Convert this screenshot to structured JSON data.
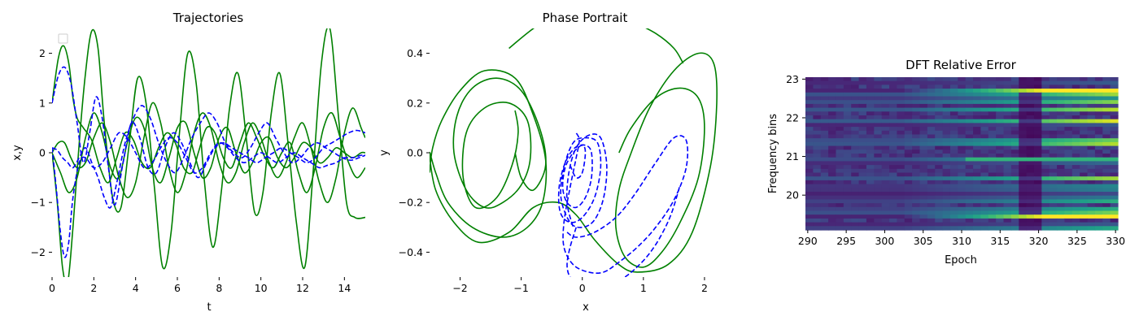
{
  "chart_data": [
    {
      "type": "line",
      "title": "Trajectories",
      "xlabel": "t",
      "ylabel": "x,y",
      "xlim": [
        0,
        15
      ],
      "ylim": [
        -2.5,
        2.5
      ],
      "xticks": [
        0,
        2,
        4,
        6,
        8,
        10,
        12,
        14
      ],
      "yticks": [
        -2,
        -1,
        0,
        1,
        2
      ],
      "legend": "top-left (empty)",
      "grid": false,
      "series": [
        {
          "style": "solid",
          "color": "#008000",
          "x": [
            0,
            0.3,
            0.55,
            0.8,
            1.0,
            1.2,
            1.5,
            1.9,
            2.3,
            2.7,
            3.1,
            3.5,
            3.9,
            4.3,
            4.7,
            5.1,
            5.5,
            5.9,
            6.3,
            6.7,
            7.0,
            7.4,
            7.8,
            8.2,
            8.6,
            9.0,
            9.4,
            9.8,
            10.2,
            10.6,
            11.0,
            11.4,
            11.8,
            12.2,
            12.6,
            13.0,
            13.4,
            13.8,
            14.2,
            14.6,
            15.0
          ],
          "y": [
            1.0,
            1.9,
            2.15,
            1.8,
            1.1,
            0.7,
            0.5,
            0.25,
            -0.3,
            -0.6,
            -0.1,
            0.4,
            0.25,
            -0.2,
            -0.3,
            0.1,
            0.4,
            0.2,
            -0.3,
            -0.4,
            0.0,
            0.5,
            0.4,
            -0.1,
            -0.3,
            0.2,
            0.6,
            0.3,
            -0.1,
            -0.3,
            0.0,
            0.2,
            -0.4,
            -0.8,
            -0.3,
            0.5,
            0.8,
            0.3,
            -0.2,
            -0.5,
            -0.3
          ]
        },
        {
          "style": "solid",
          "color": "#008000",
          "x": [
            0,
            0.3,
            0.6,
            0.9,
            1.2,
            1.6,
            2.0,
            2.4,
            2.8,
            3.2,
            3.6,
            4.0,
            4.4,
            4.8,
            5.2,
            5.6,
            6.0,
            6.4,
            6.8,
            7.2,
            7.6,
            8.0,
            8.4,
            8.8,
            9.2,
            9.6,
            10.0,
            10.4,
            10.8,
            11.2,
            11.6,
            12.0,
            12.4,
            12.8,
            13.2,
            13.6,
            14.0,
            14.4,
            14.8,
            15.0
          ],
          "y": [
            0.0,
            0.2,
            0.2,
            -0.1,
            -0.3,
            -0.2,
            0.3,
            0.6,
            0.2,
            -0.5,
            -0.9,
            -0.6,
            0.3,
            1.0,
            0.6,
            -0.3,
            -0.8,
            -0.4,
            0.4,
            0.8,
            0.5,
            -0.2,
            -0.6,
            -0.4,
            0.2,
            0.6,
            0.3,
            -0.2,
            -0.5,
            -0.2,
            0.3,
            0.6,
            0.1,
            -0.6,
            -1.0,
            -0.5,
            0.4,
            0.9,
            0.5,
            0.3
          ]
        },
        {
          "style": "solid",
          "color": "#008000",
          "x": [
            0,
            0.25,
            0.5,
            0.75,
            1.0,
            1.3,
            1.6,
            1.9,
            2.2,
            2.5,
            2.9,
            3.3,
            3.7,
            4.1,
            4.5,
            4.9,
            5.3,
            5.7,
            6.1,
            6.5,
            6.9,
            7.3,
            7.7,
            8.1,
            8.5,
            8.9,
            9.3,
            9.7,
            10.1,
            10.5,
            10.9,
            11.3,
            11.7,
            12.1,
            12.5,
            12.9,
            13.3,
            13.7,
            14.1,
            14.5,
            15.0
          ],
          "y": [
            0.0,
            -1.0,
            -2.3,
            -2.6,
            -1.5,
            0.2,
            1.6,
            2.45,
            2.1,
            0.6,
            -0.9,
            -1.1,
            0.2,
            1.5,
            1.0,
            -0.7,
            -2.3,
            -1.6,
            0.4,
            2.0,
            1.4,
            -0.6,
            -1.9,
            -0.8,
            0.9,
            1.6,
            0.3,
            -1.2,
            -0.8,
            0.8,
            1.6,
            0.2,
            -1.4,
            -2.3,
            -0.4,
            1.8,
            2.5,
            0.8,
            -1.0,
            -1.3,
            -1.3
          ]
        },
        {
          "style": "solid",
          "color": "#008000",
          "x": [
            0,
            0.4,
            0.8,
            1.2,
            1.6,
            2.0,
            2.4,
            2.8,
            3.2,
            3.6,
            4.0,
            4.4,
            4.8,
            5.2,
            5.6,
            6.0,
            6.4,
            6.8,
            7.2,
            7.6,
            8.0,
            8.4,
            8.8,
            9.2,
            9.6,
            10.0,
            10.4,
            10.8,
            11.2,
            11.6,
            12.0,
            12.4,
            12.8,
            13.2,
            13.6,
            14.0,
            14.4,
            14.8,
            15.0
          ],
          "y": [
            0.0,
            -0.4,
            -0.8,
            -0.5,
            0.3,
            0.8,
            0.4,
            -0.3,
            -0.5,
            0.2,
            0.7,
            0.5,
            -0.3,
            -0.6,
            -0.1,
            0.5,
            0.6,
            0.0,
            -0.5,
            -0.3,
            0.3,
            0.5,
            0.0,
            -0.4,
            -0.2,
            0.2,
            0.3,
            -0.1,
            -0.3,
            -0.1,
            0.2,
            0.1,
            -0.2,
            -0.1,
            0.1,
            0.0,
            -0.1,
            0.0,
            0.0
          ]
        },
        {
          "style": "dashed",
          "color": "#0000ff",
          "x": [
            0,
            0.3,
            0.6,
            0.9,
            1.2,
            1.5,
            1.8,
            2.1,
            2.4,
            2.7,
            3.0,
            3.4,
            3.8,
            4.2,
            4.6,
            5.0,
            5.4,
            5.8,
            6.2,
            6.6,
            7.0,
            7.4,
            7.8,
            8.2,
            8.6,
            9.0,
            9.4,
            9.8,
            10.2,
            10.6,
            11.0,
            11.4,
            11.8,
            12.2,
            12.6,
            13.0,
            13.4,
            13.8,
            14.2,
            14.6,
            15.0
          ],
          "y": [
            1.0,
            1.55,
            1.72,
            1.4,
            0.6,
            -0.2,
            0.4,
            1.12,
            0.7,
            -0.3,
            -1.05,
            -0.2,
            0.6,
            0.3,
            -0.3,
            -0.4,
            0.1,
            0.4,
            0.2,
            -0.2,
            -0.5,
            -0.2,
            0.1,
            0.2,
            0.1,
            0.0,
            -0.1,
            -0.2,
            -0.1,
            0.0,
            0.1,
            0.0,
            -0.1,
            -0.2,
            -0.1,
            0.1,
            0.2,
            0.3,
            0.4,
            0.45,
            0.4
          ]
        },
        {
          "style": "dashed",
          "color": "#0000ff",
          "x": [
            0,
            0.25,
            0.5,
            0.75,
            1.0,
            1.3,
            1.6,
            1.9,
            2.2,
            2.5,
            2.8,
            3.1,
            3.5,
            3.9,
            4.3,
            4.7,
            5.1,
            5.5,
            5.9,
            6.3,
            6.7,
            7.1,
            7.5,
            7.9,
            8.3,
            8.7,
            9.1,
            9.5,
            9.9,
            10.3,
            10.7,
            11.1,
            11.5,
            11.9,
            12.3,
            12.7,
            13.1,
            13.5,
            13.9,
            14.3,
            14.7,
            15.0
          ],
          "y": [
            0.1,
            0.05,
            -0.1,
            -0.2,
            -0.3,
            -0.1,
            0.1,
            -0.2,
            -0.5,
            -0.9,
            -1.1,
            -0.6,
            0.2,
            0.7,
            0.95,
            0.7,
            0.2,
            -0.2,
            -0.4,
            -0.1,
            0.3,
            0.6,
            0.8,
            0.6,
            0.2,
            0.0,
            -0.1,
            0.1,
            0.4,
            0.6,
            0.3,
            0.0,
            -0.2,
            -0.1,
            0.1,
            0.2,
            0.1,
            0.0,
            -0.1,
            -0.15,
            -0.1,
            -0.05
          ]
        },
        {
          "style": "dashed",
          "color": "#0000ff",
          "x": [
            0,
            0.2,
            0.4,
            0.6,
            0.8,
            1.0,
            1.3,
            1.6,
            2.0,
            2.4,
            2.8,
            3.2,
            3.6,
            4.0,
            4.4,
            4.8,
            5.2,
            5.6,
            6.0,
            6.4,
            6.8,
            7.2,
            7.6,
            8.0,
            8.4,
            8.8,
            9.2,
            9.6,
            10.0,
            10.4,
            10.8,
            11.2,
            11.6,
            12.0,
            12.4,
            12.8,
            13.2,
            13.6,
            14.0,
            14.4,
            14.8,
            15.0
          ],
          "y": [
            0.1,
            -0.7,
            -1.6,
            -2.1,
            -1.8,
            -0.9,
            -0.2,
            -0.1,
            -0.3,
            -0.2,
            0.1,
            0.4,
            0.3,
            0.0,
            -0.3,
            -0.2,
            0.1,
            0.3,
            0.2,
            -0.1,
            -0.4,
            -0.3,
            0.0,
            0.2,
            0.1,
            -0.1,
            -0.2,
            -0.1,
            0.0,
            -0.1,
            -0.2,
            -0.1,
            0.0,
            -0.1,
            -0.2,
            -0.3,
            -0.25,
            -0.2,
            -0.1,
            -0.1,
            -0.05,
            -0.05
          ]
        }
      ]
    },
    {
      "type": "line",
      "title": "Phase Portrait",
      "xlabel": "x",
      "ylabel": "y",
      "xlim": [
        -2.5,
        2.6
      ],
      "ylim": [
        -0.5,
        0.5
      ],
      "xticks": [
        -2,
        -1,
        0,
        1,
        2
      ],
      "yticks": [
        -0.4,
        -0.2,
        0.0,
        0.2,
        0.4
      ],
      "grid": false,
      "series": [
        {
          "style": "solid",
          "color": "#008000",
          "role": "loop-left-outer",
          "x": [
            -2.5,
            -2.45,
            -2.3,
            -2.0,
            -1.6,
            -1.1,
            -0.8,
            -0.6,
            -0.65,
            -0.9,
            -1.3,
            -1.8,
            -2.2,
            -2.4,
            -2.5,
            -2.4,
            -2.1,
            -1.7,
            -1.2,
            -0.8,
            -0.4,
            -0.1,
            0.2,
            0.6,
            0.9,
            1.4,
            1.8,
            2.1,
            2.2,
            2.15,
            1.9,
            1.5,
            1.1,
            0.8,
            0.6,
            0.55,
            0.7,
            1.0,
            1.3,
            1.6,
            1.9,
            2.0,
            1.9,
            1.6,
            1.2,
            0.8,
            0.6
          ],
          "y": [
            -0.08,
            0.02,
            0.13,
            0.25,
            0.33,
            0.3,
            0.15,
            -0.03,
            -0.2,
            -0.3,
            -0.34,
            -0.3,
            -0.2,
            -0.08,
            0.0,
            -0.15,
            -0.28,
            -0.36,
            -0.32,
            -0.22,
            -0.2,
            -0.25,
            -0.35,
            -0.45,
            -0.48,
            -0.45,
            -0.32,
            -0.05,
            0.2,
            0.36,
            0.4,
            0.33,
            0.18,
            0.0,
            -0.15,
            -0.3,
            -0.42,
            -0.46,
            -0.4,
            -0.28,
            -0.1,
            0.1,
            0.22,
            0.26,
            0.22,
            0.1,
            0.0
          ]
        },
        {
          "style": "solid",
          "color": "#008000",
          "role": "loop-left-inner",
          "x": [
            -1.1,
            -1.05,
            -1.15,
            -1.4,
            -1.75,
            -1.95,
            -1.9,
            -1.6,
            -1.2,
            -0.9,
            -0.85,
            -1.0,
            -1.3,
            -1.6,
            -1.9,
            -2.1,
            -2.05,
            -1.8,
            -1.4,
            -1.0,
            -0.7,
            -0.6,
            -0.8,
            -1.0,
            -1.1
          ],
          "y": [
            0.17,
            0.08,
            -0.05,
            -0.18,
            -0.22,
            -0.1,
            0.08,
            0.18,
            0.2,
            0.13,
            -0.02,
            -0.13,
            -0.2,
            -0.22,
            -0.15,
            0.0,
            0.15,
            0.26,
            0.3,
            0.25,
            0.1,
            -0.05,
            -0.15,
            -0.1,
            0.0
          ]
        },
        {
          "style": "solid",
          "color": "#008000",
          "role": "upper-arc",
          "x": [
            -1.2,
            -0.8,
            -0.4,
            0.0,
            0.4,
            0.8,
            1.2,
            1.5,
            1.65
          ],
          "y": [
            0.42,
            0.5,
            0.56,
            0.58,
            0.57,
            0.53,
            0.48,
            0.42,
            0.36
          ]
        },
        {
          "style": "dashed",
          "color": "#0000ff",
          "role": "spiral-center",
          "x": [
            -0.2,
            -0.1,
            0.0,
            0.05,
            0.0,
            -0.15,
            -0.28,
            -0.32,
            -0.25,
            -0.1,
            0.05,
            0.15,
            0.15,
            0.05,
            -0.12,
            -0.28,
            -0.38,
            -0.36,
            -0.2,
            0.0,
            0.2,
            0.3,
            0.25,
            0.05,
            -0.15,
            -0.3,
            -0.35,
            -0.2,
            0.0,
            0.2,
            0.35,
            0.4,
            0.3,
            0.1,
            -0.1,
            -0.22,
            -0.25,
            -0.15
          ],
          "y": [
            -0.05,
            -0.1,
            -0.08,
            0.0,
            0.03,
            0.0,
            -0.06,
            -0.14,
            -0.2,
            -0.22,
            -0.18,
            -0.1,
            0.0,
            0.03,
            0.02,
            -0.04,
            -0.14,
            -0.24,
            -0.28,
            -0.26,
            -0.18,
            -0.06,
            0.04,
            0.06,
            0.04,
            -0.06,
            -0.18,
            -0.28,
            -0.3,
            -0.27,
            -0.18,
            -0.05,
            0.06,
            0.07,
            0.02,
            -0.08,
            -0.2,
            -0.3
          ]
        },
        {
          "style": "dashed",
          "color": "#0000ff",
          "role": "spiral-outer",
          "x": [
            -0.25,
            -0.1,
            0.2,
            0.55,
            0.85,
            1.2,
            1.5,
            1.7,
            1.7,
            1.5,
            1.2,
            0.9,
            0.6,
            0.35,
            0.1,
            -0.15,
            -0.3,
            -0.3,
            -0.2,
            -0.1,
            -0.05,
            -0.1
          ],
          "y": [
            -0.32,
            -0.34,
            -0.32,
            -0.26,
            -0.17,
            -0.04,
            0.06,
            0.05,
            -0.06,
            -0.19,
            -0.3,
            -0.38,
            -0.44,
            -0.48,
            -0.48,
            -0.45,
            -0.38,
            -0.28,
            -0.14,
            -0.02,
            0.05,
            0.08
          ]
        },
        {
          "style": "dashed",
          "color": "#0000ff",
          "role": "spiral-tail",
          "x": [
            0.7,
            0.85,
            1.05,
            1.25,
            1.45,
            1.6
          ],
          "y": [
            -0.5,
            -0.47,
            -0.42,
            -0.35,
            -0.25,
            -0.13
          ]
        },
        {
          "style": "dashed",
          "color": "#0000ff",
          "role": "spiral-bottom",
          "x": [
            -0.1,
            -0.2,
            -0.25,
            -0.2,
            -0.05
          ],
          "y": [
            -0.3,
            -0.38,
            -0.45,
            -0.5,
            -0.53
          ]
        }
      ]
    },
    {
      "type": "heatmap",
      "title": "DFT Relative Error",
      "xlabel": "Epoch",
      "ylabel": "Frequency bins",
      "xlim": [
        289.7,
        330.3
      ],
      "ylim": [
        19.1,
        23.05
      ],
      "xticks": [
        290,
        295,
        300,
        305,
        310,
        315,
        320,
        325,
        330
      ],
      "yticks": [
        20,
        21,
        22,
        23
      ],
      "colormap": "viridis",
      "rows": 40,
      "cols": 41,
      "value_range": [
        0,
        1
      ]
    }
  ]
}
